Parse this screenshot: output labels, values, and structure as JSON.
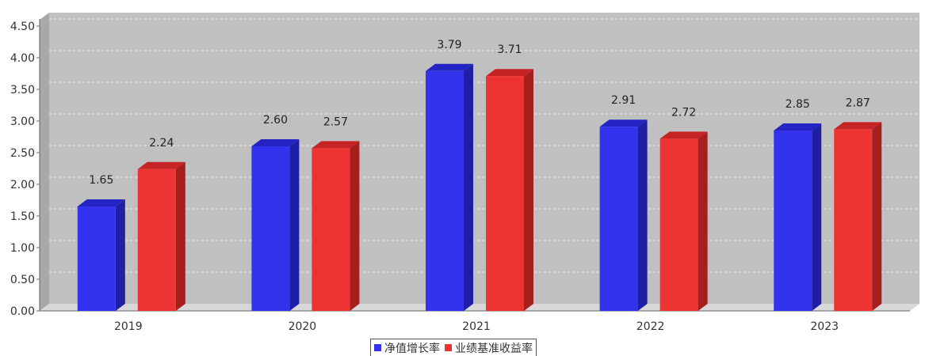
{
  "chart_data": {
    "type": "bar",
    "categories": [
      "2019",
      "2020",
      "2021",
      "2022",
      "2023"
    ],
    "series": [
      {
        "name": "净值增长率",
        "values": [
          1.65,
          2.6,
          3.79,
          2.91,
          2.85
        ],
        "value_labels": [
          "1.65",
          "2.60",
          "3.79",
          "2.91",
          "2.85"
        ],
        "color": "#3333ee",
        "side_color": "#1f1fa6",
        "top_color": "#2424c4"
      },
      {
        "name": "业绩基准收益率",
        "values": [
          2.24,
          2.57,
          3.71,
          2.72,
          2.87
        ],
        "value_labels": [
          "2.24",
          "2.57",
          "3.71",
          "2.72",
          "2.87"
        ],
        "color": "#ee3333",
        "side_color": "#a61f1f",
        "top_color": "#c42424"
      }
    ],
    "ylim": [
      0,
      4.6
    ],
    "yticks": [
      0,
      0.5,
      1.0,
      1.5,
      2.0,
      2.5,
      3.0,
      3.5,
      4.0,
      4.5
    ],
    "ytick_labels": [
      "0.00",
      "0.50",
      "1.00",
      "1.50",
      "2.00",
      "2.50",
      "3.00",
      "3.50",
      "4.00",
      "4.50"
    ],
    "title": "",
    "xlabel": "",
    "ylabel": "",
    "grid": true,
    "legend_position": "bottom-center",
    "plot_background": "#c0c0c0"
  }
}
